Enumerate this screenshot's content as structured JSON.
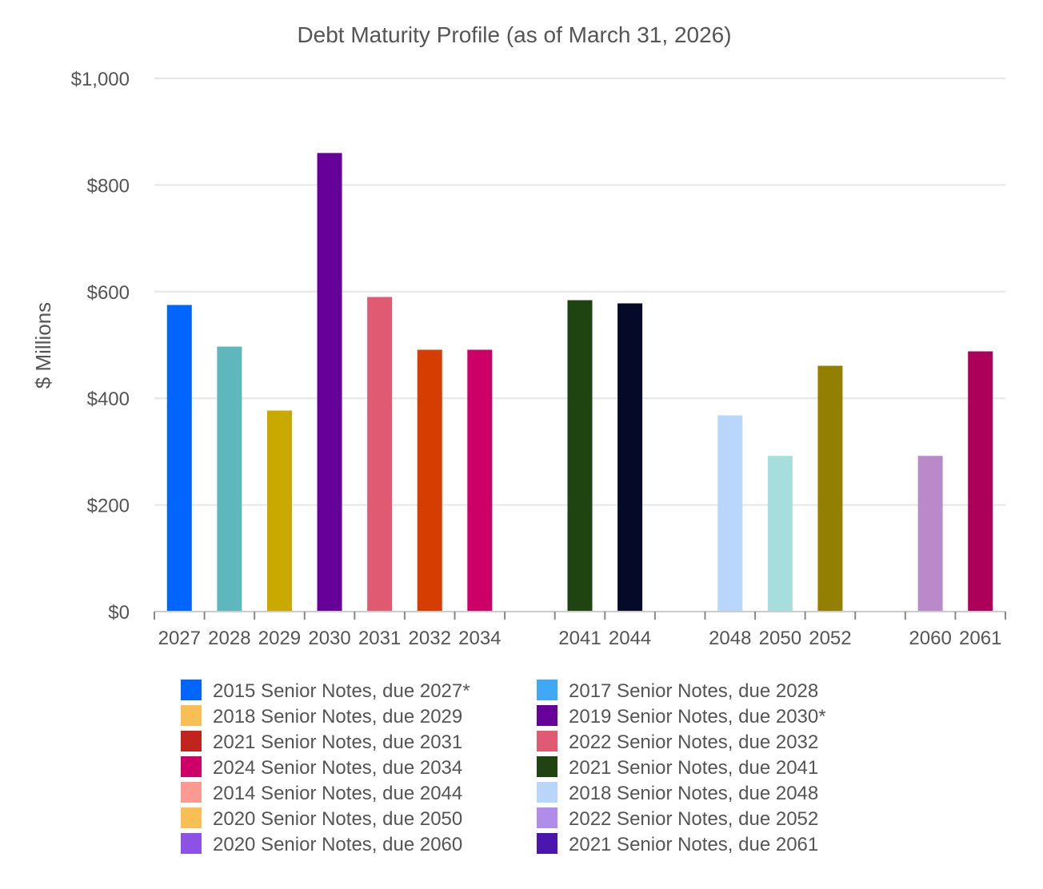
{
  "chart_data": {
    "type": "bar",
    "title": "Debt Maturity Profile (as of March 31, 2026)",
    "xlabel": "",
    "ylabel": "$ Millions",
    "ylim": [
      0,
      1000
    ],
    "y_ticks": [
      "$0",
      "$200",
      "$400",
      "$600",
      "$800",
      "$1,000"
    ],
    "y_tick_values": [
      0,
      200,
      400,
      600,
      800,
      1000
    ],
    "grid": true,
    "legend_position": "bottom",
    "categories": [
      "2027",
      "2028",
      "2029",
      "2030",
      "2031",
      "2032",
      "2034",
      "",
      "2041",
      "2044",
      "",
      "2048",
      "2050",
      "2052",
      "",
      "2060",
      "2061"
    ],
    "bars": [
      {
        "category": "2027",
        "value": 575,
        "color": "#0066ff"
      },
      {
        "category": "2028",
        "value": 497,
        "color": "#5eb7bd"
      },
      {
        "category": "2029",
        "value": 377,
        "color": "#c9a800"
      },
      {
        "category": "2030",
        "value": 860,
        "color": "#660099"
      },
      {
        "category": "2031",
        "value": 590,
        "color": "#e05a72"
      },
      {
        "category": "2032",
        "value": 491,
        "color": "#d63d00"
      },
      {
        "category": "2034",
        "value": 491,
        "color": "#cc0066"
      },
      {
        "category": "2041",
        "value": 584,
        "color": "#1f4412"
      },
      {
        "category": "2044",
        "value": 578,
        "color": "#050a28"
      },
      {
        "category": "2048",
        "value": 368,
        "color": "#b9d6fd"
      },
      {
        "category": "2050",
        "value": 292,
        "color": "#a6dede"
      },
      {
        "category": "2052",
        "value": 461,
        "color": "#948000"
      },
      {
        "category": "2060",
        "value": 292,
        "color": "#b989ca"
      },
      {
        "category": "2061",
        "value": 488,
        "color": "#ad005b"
      }
    ],
    "legend": [
      {
        "label": "2015 Senior Notes, due 2027*",
        "color": "#0066ff"
      },
      {
        "label": "2017 Senior Notes, due 2028",
        "color": "#3fa9f5"
      },
      {
        "label": "2018 Senior Notes, due 2029",
        "color": "#f8bf55"
      },
      {
        "label": "2019 Senior Notes, due 2030*",
        "color": "#660099"
      },
      {
        "label": "2021 Senior Notes, due 2031",
        "color": "#c0241c"
      },
      {
        "label": "2022 Senior Notes, due 2032",
        "color": "#e05a72"
      },
      {
        "label": "2024 Senior Notes, due 2034",
        "color": "#cc0066"
      },
      {
        "label": "2021 Senior Notes, due 2041",
        "color": "#1f4412"
      },
      {
        "label": "2014 Senior Notes, due 2044",
        "color": "#fa9a91"
      },
      {
        "label": "2018 Senior Notes, due 2048",
        "color": "#b9d6fd"
      },
      {
        "label": "2020 Senior Notes, due 2050",
        "color": "#f8bf55"
      },
      {
        "label": "2022 Senior Notes, due 2052",
        "color": "#b18deb"
      },
      {
        "label": "2020 Senior Notes, due 2060",
        "color": "#8c52e6"
      },
      {
        "label": "2021 Senior Notes, due 2061",
        "color": "#4a16ad"
      }
    ]
  }
}
